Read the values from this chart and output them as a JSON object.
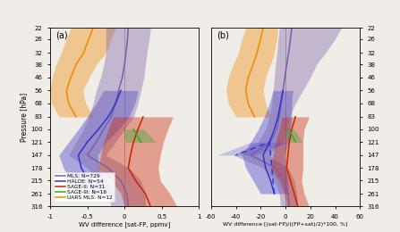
{
  "pressure_levels": [
    22,
    26,
    32,
    38,
    46,
    56,
    68,
    83,
    100,
    121,
    147,
    178,
    215,
    261,
    316
  ],
  "colors": {
    "MLS": "#7b5ea7",
    "HALOE": "#3333cc",
    "SAGE-II": "#cc2200",
    "SAGE-III": "#33aa33",
    "UARS MLS": "#ee8800"
  },
  "legend_labels": {
    "MLS": "MLS: N=729",
    "HALOE": "HALOE: N=54",
    "SAGE-II": "SAGE-II: N=31",
    "SAGE-III": "SAGE-III: N=16",
    "UARS MLS": "UARS MLS: N=12"
  },
  "panel_a": {
    "MLS_mean": [
      0.05,
      0.04,
      0.02,
      0.0,
      -0.03,
      -0.08,
      -0.12,
      -0.18,
      -0.28,
      -0.38,
      -0.5,
      -0.22,
      -0.05,
      0.03,
      0.05
    ],
    "MLS_low": [
      -0.25,
      -0.25,
      -0.25,
      -0.28,
      -0.32,
      -0.38,
      -0.42,
      -0.48,
      -0.55,
      -0.65,
      -0.75,
      -0.5,
      -0.32,
      -0.22,
      -0.18
    ],
    "MLS_high": [
      0.35,
      0.33,
      0.3,
      0.28,
      0.26,
      0.22,
      0.18,
      0.12,
      0.0,
      -0.12,
      -0.25,
      0.06,
      0.22,
      0.28,
      0.28
    ],
    "HALOE_mean": [
      null,
      null,
      null,
      null,
      null,
      -0.05,
      -0.12,
      -0.22,
      -0.35,
      -0.5,
      -0.62,
      -0.58,
      -0.48,
      -0.38,
      null
    ],
    "HALOE_low": [
      null,
      null,
      null,
      null,
      null,
      -0.28,
      -0.38,
      -0.5,
      -0.62,
      -0.75,
      -0.88,
      -0.82,
      -0.72,
      -0.62,
      null
    ],
    "HALOE_high": [
      null,
      null,
      null,
      null,
      null,
      0.18,
      0.14,
      0.06,
      -0.08,
      -0.25,
      -0.36,
      -0.34,
      -0.24,
      -0.14,
      null
    ],
    "SAGE2_mean": [
      null,
      null,
      null,
      null,
      null,
      null,
      null,
      0.25,
      0.18,
      0.12,
      0.08,
      0.05,
      0.15,
      0.28,
      0.35
    ],
    "SAGE2_low": [
      null,
      null,
      null,
      null,
      null,
      null,
      null,
      -0.15,
      -0.22,
      -0.28,
      -0.32,
      -0.35,
      -0.18,
      -0.05,
      0.0
    ],
    "SAGE2_high": [
      null,
      null,
      null,
      null,
      null,
      null,
      null,
      0.65,
      0.58,
      0.52,
      0.48,
      0.45,
      0.48,
      0.61,
      0.7
    ],
    "SAGE3_mean": [
      null,
      null,
      null,
      null,
      null,
      null,
      null,
      null,
      0.12,
      0.22,
      null,
      null,
      null,
      null,
      null
    ],
    "SAGE3_low": [
      null,
      null,
      null,
      null,
      null,
      null,
      null,
      null,
      -0.02,
      0.02,
      null,
      null,
      null,
      null,
      null
    ],
    "SAGE3_high": [
      null,
      null,
      null,
      null,
      null,
      null,
      null,
      null,
      0.26,
      0.42,
      null,
      null,
      null,
      null,
      null
    ],
    "UARSMLS_mean": [
      -0.42,
      -0.48,
      -0.55,
      -0.65,
      -0.72,
      -0.78,
      -0.75,
      -0.65,
      null,
      null,
      null,
      null,
      null,
      null,
      null
    ],
    "UARSMLS_low": [
      -0.72,
      -0.78,
      -0.85,
      -0.92,
      -0.97,
      -1.0,
      -0.98,
      -0.88,
      null,
      null,
      null,
      null,
      null,
      null,
      null
    ],
    "UARSMLS_high": [
      -0.12,
      -0.18,
      -0.25,
      -0.38,
      -0.47,
      -0.56,
      -0.52,
      -0.42,
      null,
      null,
      null,
      null,
      null,
      null,
      null
    ]
  },
  "panel_b": {
    "MLS_mean": [
      5.0,
      4.0,
      2.5,
      1.0,
      -0.5,
      -2.0,
      -3.5,
      -5.0,
      -7.0,
      -12.0,
      -28.0,
      -8.0,
      -1.0,
      2.0,
      3.0
    ],
    "MLS_low": [
      -5.0,
      -6.0,
      -7.0,
      -8.0,
      -9.0,
      -10.0,
      -11.0,
      -13.0,
      -16.0,
      -22.0,
      -42.0,
      -18.0,
      -9.0,
      -5.0,
      -4.0
    ],
    "MLS_high": [
      45.0,
      40.0,
      32.0,
      25.0,
      20.0,
      14.0,
      8.0,
      3.0,
      2.0,
      -2.0,
      -14.0,
      2.0,
      7.0,
      9.0,
      10.0
    ],
    "HALOE_mean": [
      null,
      null,
      null,
      null,
      null,
      -2.0,
      -4.0,
      -6.0,
      -9.0,
      -13.0,
      -18.0,
      -16.0,
      -12.0,
      -9.0,
      null
    ],
    "HALOE_low": [
      null,
      null,
      null,
      null,
      null,
      -10.0,
      -13.0,
      -17.0,
      -22.0,
      -28.0,
      -35.0,
      -32.0,
      -26.0,
      -20.0,
      null
    ],
    "HALOE_high": [
      null,
      null,
      null,
      null,
      null,
      6.0,
      5.0,
      5.0,
      4.0,
      2.0,
      -1.0,
      0.0,
      2.0,
      2.0,
      null
    ],
    "HALOE_dashed_mean": [
      null,
      null,
      null,
      null,
      null,
      null,
      null,
      null,
      null,
      -13.0,
      -40.0,
      null,
      null,
      null,
      null
    ],
    "HALOE_dashed_low": [
      null,
      null,
      null,
      null,
      null,
      null,
      null,
      null,
      null,
      -28.0,
      -55.0,
      null,
      null,
      null,
      null
    ],
    "HALOE_dashed_high": [
      null,
      null,
      null,
      null,
      null,
      null,
      null,
      null,
      null,
      2.0,
      -25.0,
      null,
      null,
      null,
      null
    ],
    "SAGE2_mean": [
      null,
      null,
      null,
      null,
      null,
      null,
      null,
      8.0,
      5.0,
      3.0,
      2.0,
      1.0,
      4.0,
      7.0,
      10.0
    ],
    "SAGE2_low": [
      null,
      null,
      null,
      null,
      null,
      null,
      null,
      -3.0,
      -5.0,
      -8.0,
      -10.0,
      -12.0,
      -5.0,
      -1.0,
      1.0
    ],
    "SAGE2_high": [
      null,
      null,
      null,
      null,
      null,
      null,
      null,
      19.0,
      15.0,
      14.0,
      14.0,
      14.0,
      13.0,
      15.0,
      19.0
    ],
    "SAGE3_mean": [
      null,
      null,
      null,
      null,
      null,
      null,
      null,
      null,
      3.0,
      8.0,
      null,
      null,
      null,
      null,
      null
    ],
    "SAGE3_low": [
      null,
      null,
      null,
      null,
      null,
      null,
      null,
      null,
      -1.0,
      2.0,
      null,
      null,
      null,
      null,
      null
    ],
    "SAGE3_high": [
      null,
      null,
      null,
      null,
      null,
      null,
      null,
      null,
      7.0,
      14.0,
      null,
      null,
      null,
      null,
      null
    ],
    "UARSMLS_mean": [
      -18.0,
      -20.0,
      -23.0,
      -26.0,
      -30.0,
      -32.0,
      -30.0,
      -25.0,
      null,
      null,
      null,
      null,
      null,
      null,
      null
    ],
    "UARSMLS_low": [
      -32.0,
      -35.0,
      -38.0,
      -42.0,
      -46.0,
      -48.0,
      -46.0,
      -40.0,
      null,
      null,
      null,
      null,
      null,
      null,
      null
    ],
    "UARSMLS_high": [
      -6.0,
      -7.0,
      -9.0,
      -12.0,
      -16.0,
      -18.0,
      -16.0,
      -12.0,
      null,
      null,
      null,
      null,
      null,
      null,
      null
    ]
  },
  "xlim_a": [
    -1.0,
    1.0
  ],
  "xlim_b": [
    -60,
    60
  ],
  "ylim": [
    316,
    22
  ],
  "yticks": [
    22,
    26,
    32,
    38,
    46,
    56,
    68,
    83,
    100,
    121,
    147,
    178,
    215,
    261,
    316
  ],
  "xticks_a": [
    -1.0,
    -0.5,
    0.0,
    0.5,
    1.0
  ],
  "xticks_b": [
    -60,
    -40,
    -20,
    0,
    20,
    40,
    60
  ],
  "xlabel_a": "WV difference [sat-FP, ppmv]",
  "xlabel_b": "WV difference [(sat-FP)/((FP+sat)/2)*100, %]",
  "ylabel": "Pressure [hPa]",
  "panel_a_label": "(a)",
  "panel_b_label": "(b)",
  "bg_color": "#f0ede8",
  "alpha_fill": 0.38
}
